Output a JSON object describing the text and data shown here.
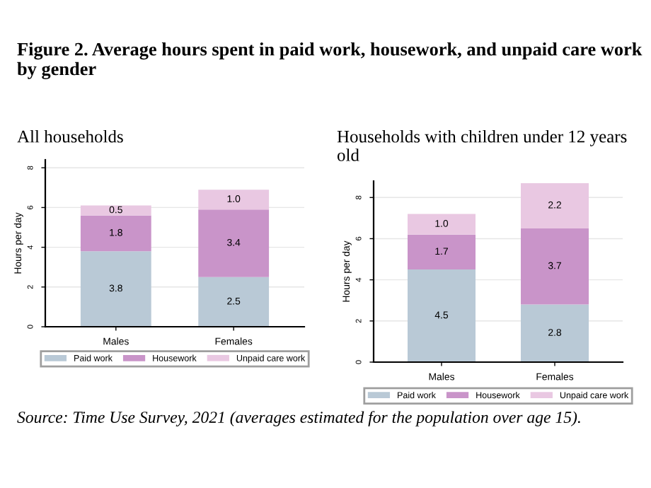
{
  "chart_data": [
    {
      "type": "bar",
      "stacked": true,
      "title": "Figure 2. Average hours spent in paid work, housework, and unpaid care work by gender",
      "subtitle": "All households",
      "ylabel": "Hours per day",
      "categories": [
        "Males",
        "Females"
      ],
      "series": [
        {
          "name": "Paid work",
          "color": "#b9c9d6",
          "values": [
            3.8,
            2.5
          ],
          "value_labels": [
            "3.8",
            "2.5"
          ]
        },
        {
          "name": "Housework",
          "color": "#c994c9",
          "values": [
            1.8,
            3.4
          ],
          "value_labels": [
            "1.8",
            "3.4"
          ]
        },
        {
          "name": "Unpaid care work",
          "color": "#e9c8e2",
          "values": [
            0.5,
            1.0
          ],
          "value_labels": [
            "0.5",
            "1.0"
          ]
        }
      ],
      "ylim": [
        0,
        8.4
      ],
      "yticks": [
        0,
        2,
        4,
        6,
        8
      ],
      "grid": "y",
      "legend": "bottom",
      "annotations": [
        "Source: Time Use Survey, 2021 (averages estimated for the population over age 15)."
      ]
    },
    {
      "type": "bar",
      "stacked": true,
      "subtitle": "Households with children under 12 years old",
      "ylabel": "Hours per day",
      "categories": [
        "Males",
        "Females"
      ],
      "series": [
        {
          "name": "Paid work",
          "color": "#b9c9d6",
          "values": [
            4.5,
            2.8
          ],
          "value_labels": [
            "4.5",
            "2.8"
          ]
        },
        {
          "name": "Housework",
          "color": "#c994c9",
          "values": [
            1.7,
            3.7
          ],
          "value_labels": [
            "1.7",
            "3.7"
          ]
        },
        {
          "name": "Unpaid care work",
          "color": "#e9c8e2",
          "values": [
            1.0,
            2.2
          ],
          "value_labels": [
            "1.0",
            "2.2"
          ]
        }
      ],
      "ylim": [
        0,
        8.8
      ],
      "yticks": [
        0,
        2,
        4,
        6,
        8
      ],
      "grid": "y",
      "legend": "bottom"
    }
  ]
}
